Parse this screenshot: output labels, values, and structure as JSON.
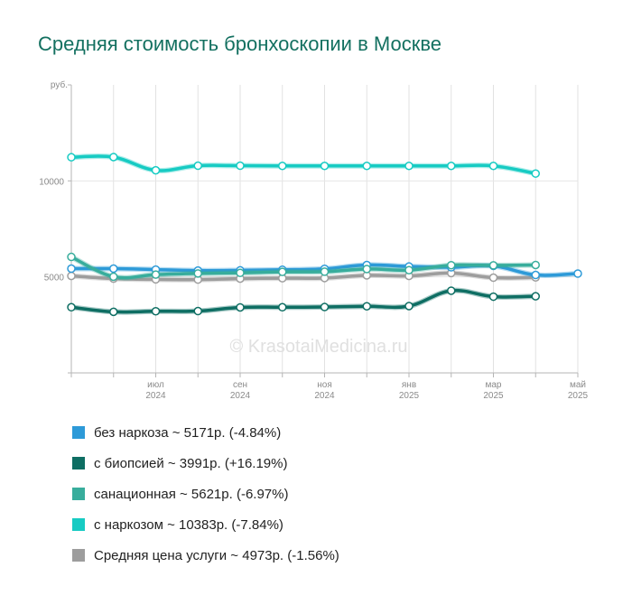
{
  "title": "Средняя стоимость бронхоскопии в Москве",
  "watermark": "© KrasotaiMedicina.ru",
  "chart_data": {
    "type": "line",
    "y_unit": "руб.",
    "ylim": [
      0,
      15000
    ],
    "y_ticks": [
      "5000",
      "10000"
    ],
    "x": [
      "2024-05",
      "2024-06",
      "2024-07",
      "2024-08",
      "2024-09",
      "2024-10",
      "2024-11",
      "2024-12",
      "2025-01",
      "2025-02",
      "2025-03",
      "2025-04",
      "2025-05"
    ],
    "x_tick_labels": [
      {
        "month": "июл",
        "year": "2024",
        "x": "2024-07"
      },
      {
        "month": "сен",
        "year": "2024",
        "x": "2024-09"
      },
      {
        "month": "ноя",
        "year": "2024",
        "x": "2024-11"
      },
      {
        "month": "янв",
        "year": "2025",
        "x": "2025-01"
      },
      {
        "month": "мар",
        "year": "2025",
        "x": "2025-03"
      },
      {
        "month": "май",
        "year": "2025",
        "x": "2025-05"
      }
    ],
    "grid": "vertical",
    "legend_position": "bottom",
    "series": [
      {
        "name": "без наркоза",
        "label": "без наркоза ~ 5171р. (-4.84%)",
        "color": "#2d9ad8",
        "values": [
          5430,
          5430,
          5380,
          5330,
          5340,
          5370,
          5420,
          5620,
          5540,
          5500,
          5570,
          5100,
          5171
        ]
      },
      {
        "name": "с биопсией",
        "label": "с биопсией ~ 3991р. (+16.19%)",
        "color": "#0e6e63",
        "values": [
          3420,
          3180,
          3210,
          3220,
          3410,
          3420,
          3430,
          3470,
          3480,
          4280,
          3970,
          3991,
          null
        ]
      },
      {
        "name": "санационная",
        "label": "санационная ~ 5621р. (-6.97%)",
        "color": "#38ad9c",
        "values": [
          6040,
          5010,
          5120,
          5180,
          5210,
          5260,
          5270,
          5410,
          5350,
          5610,
          5600,
          5621,
          null
        ]
      },
      {
        "name": "с наркозом",
        "label": "с наркозом ~ 10383р. (-7.84%)",
        "color": "#17cbc3",
        "values": [
          11230,
          11240,
          10550,
          10790,
          10790,
          10780,
          10780,
          10780,
          10780,
          10780,
          10780,
          10383,
          null
        ]
      },
      {
        "name": "Средняя цена услуги",
        "label": "Средняя цена услуги ~ 4973р. (-1.56%)",
        "color": "#9d9d9d",
        "values": [
          5050,
          4910,
          4870,
          4860,
          4910,
          4930,
          4940,
          5080,
          5050,
          5200,
          4960,
          4973,
          null
        ]
      }
    ]
  }
}
